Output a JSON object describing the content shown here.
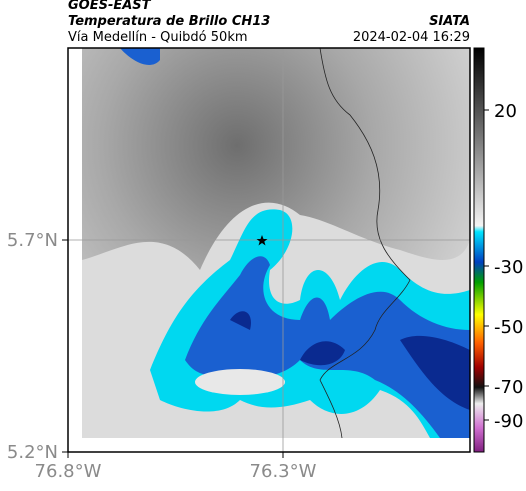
{
  "header": {
    "satellite": "GOES-EAST",
    "product": "Temperatura de Brillo CH13",
    "source": "SIATA",
    "route": "Vía Medellín - Quibdó 50km",
    "datetime": "2024-02-04 16:29"
  },
  "map": {
    "lat_ticks": [
      "5.7°N",
      "5.2°N"
    ],
    "lon_ticks": [
      "76.8°W",
      "76.3°W"
    ]
  },
  "colorbar": {
    "ticks": [
      20,
      -30,
      -50,
      -70,
      -90
    ]
  }
}
